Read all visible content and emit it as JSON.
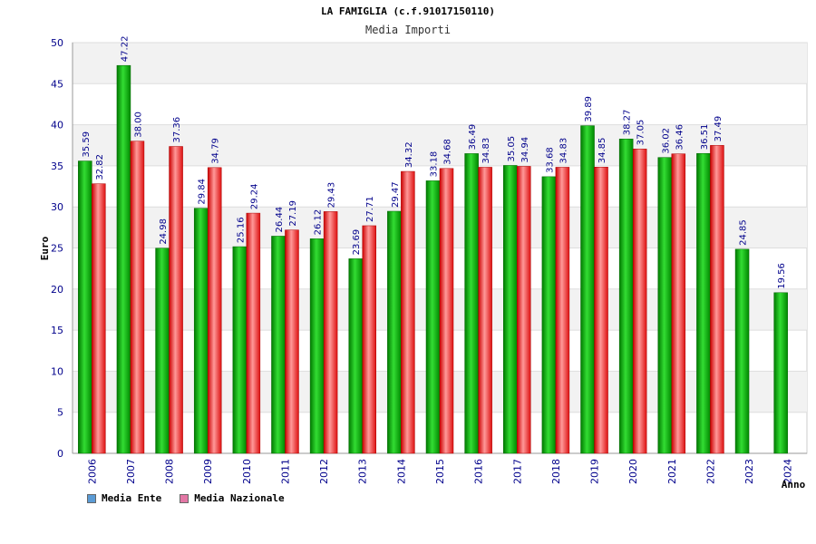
{
  "chart_data": {
    "type": "bar",
    "title": "LA FAMIGLIA (c.f.91017150110)",
    "subtitle": "Media Importi",
    "xlabel": "Anno",
    "ylabel": "Euro",
    "ylim": [
      0,
      50
    ],
    "yticks": [
      0,
      5,
      10,
      15,
      20,
      25,
      30,
      35,
      40,
      45,
      50
    ],
    "grid": true,
    "legend_position": "bottom-left",
    "categories": [
      "2006",
      "2007",
      "2008",
      "2009",
      "2010",
      "2011",
      "2012",
      "2013",
      "2014",
      "2015",
      "2016",
      "2017",
      "2018",
      "2019",
      "2020",
      "2021",
      "2022",
      "2023",
      "2024"
    ],
    "series": [
      {
        "name": "Media Ente",
        "color": "#00bb00",
        "legend_color": "#5b9bd5",
        "values": [
          35.59,
          47.22,
          24.98,
          29.84,
          25.16,
          26.44,
          26.12,
          23.69,
          29.47,
          33.18,
          36.49,
          35.05,
          33.68,
          39.89,
          38.27,
          36.02,
          36.51,
          24.85,
          19.56
        ],
        "labels": [
          "35.59",
          "47.22",
          "24.98",
          "29.84",
          "25.16",
          "26.44",
          "26.12",
          "23.69",
          "29.47",
          "33.18",
          "36.49",
          "35.05",
          "33.68",
          "39.89",
          "38.27",
          "36.02",
          "36.51",
          "24.85",
          "19.56"
        ]
      },
      {
        "name": "Media Nazionale",
        "color": "#ee2222",
        "legend_color": "#e377a5",
        "values": [
          32.82,
          38.0,
          37.36,
          34.79,
          29.24,
          27.19,
          29.43,
          27.71,
          34.32,
          34.68,
          34.83,
          34.94,
          34.83,
          34.85,
          37.05,
          36.46,
          37.49,
          null,
          null
        ],
        "labels": [
          "32.82",
          "38.00",
          "37.36",
          "34.79",
          "29.24",
          "27.19",
          "29.43",
          "27.71",
          "34.32",
          "34.68",
          "34.83",
          "34.94",
          "34.83",
          "34.85",
          "37.05",
          "36.46",
          "37.49",
          null,
          null
        ]
      }
    ]
  }
}
